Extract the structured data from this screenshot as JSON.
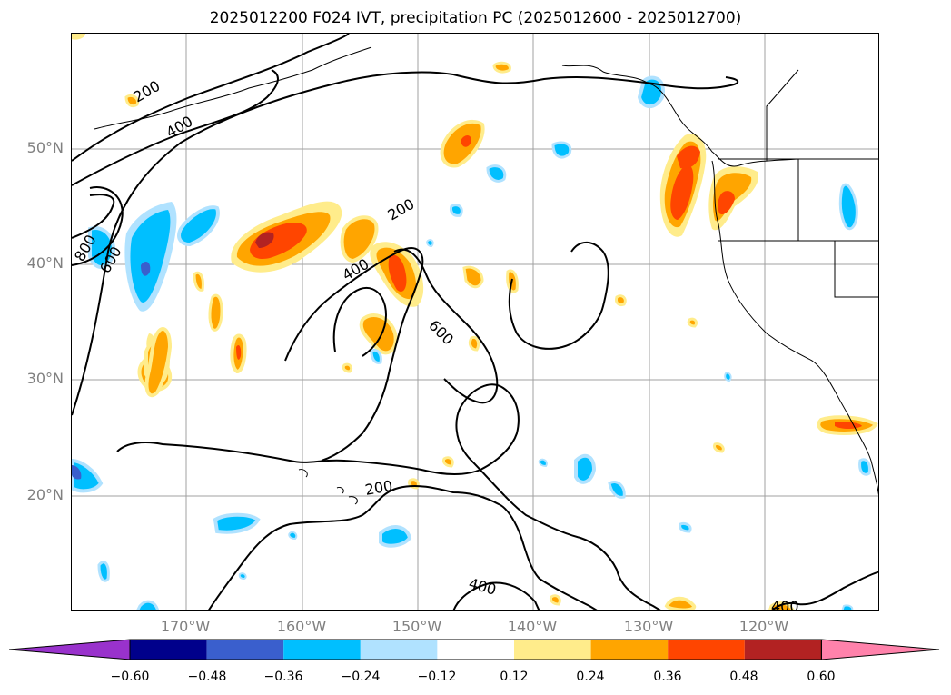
{
  "title": "2025012200 F024 IVT, precipitation PC (2025012600 - 2025012700)",
  "map": {
    "lat_labels": [
      "50°N",
      "40°N",
      "30°N",
      "20°N"
    ],
    "lon_labels": [
      "170°W",
      "160°W",
      "150°W",
      "140°W",
      "130°W",
      "120°W"
    ],
    "extent": {
      "lon_min": -180,
      "lon_max": -110,
      "lat_min": 10,
      "lat_max": 60
    },
    "grid": true,
    "ivt_contour_labels": [
      "200",
      "400",
      "800",
      "600",
      "200",
      "400",
      "600",
      "200",
      "400",
      "400"
    ]
  },
  "colorbar": {
    "tick_labels": [
      "−0.60",
      "−0.48",
      "−0.36",
      "−0.24",
      "−0.12",
      "0.12",
      "0.24",
      "0.36",
      "0.48",
      "0.60"
    ],
    "colors": [
      "#9932cc",
      "#00008b",
      "#3a5fcd",
      "#00bfff",
      "#b0e2ff",
      "#ffffff",
      "#ffec8b",
      "#ffa500",
      "#ff4500",
      "#b22222",
      "#ff82ab"
    ]
  }
}
